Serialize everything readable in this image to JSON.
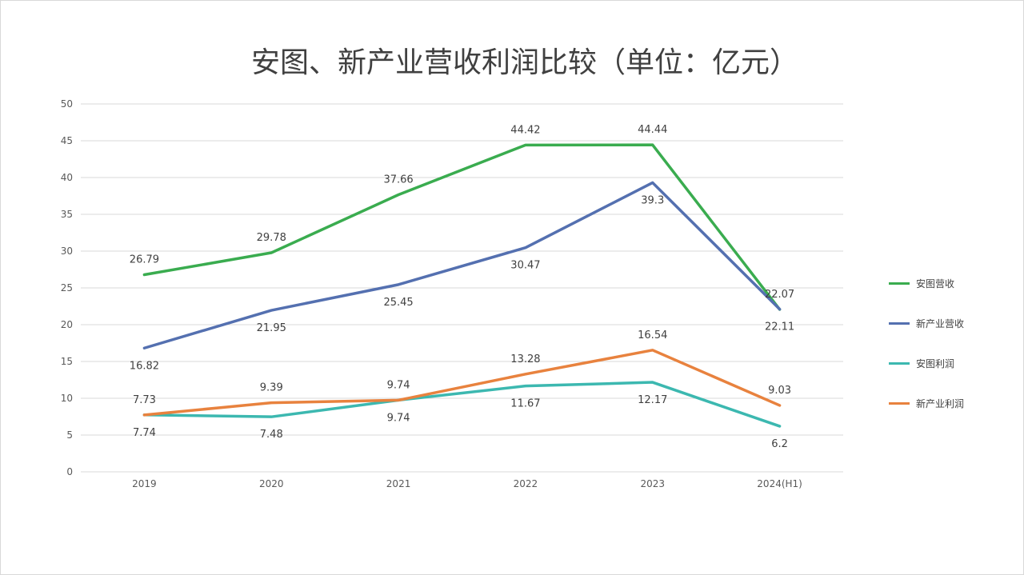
{
  "chart_data": {
    "type": "line",
    "title": "安图、新产业营收利润比较（单位：亿元）",
    "categories": [
      "2019",
      "2020",
      "2021",
      "2022",
      "2023",
      "2024(H1)"
    ],
    "ylim": [
      0,
      50
    ],
    "yticks": [
      0,
      5,
      10,
      15,
      20,
      25,
      30,
      35,
      40,
      45,
      50
    ],
    "grid": true,
    "legend_position": "right",
    "series": [
      {
        "name": "安图营收",
        "color": "#3aac4f",
        "values": [
          26.79,
          29.78,
          37.66,
          44.42,
          44.44,
          22.07
        ],
        "labels": [
          "26.79",
          "29.78",
          "37.66",
          "44.42",
          "44.44",
          "22.07"
        ],
        "label_pos": [
          "above",
          "above",
          "above",
          "above",
          "above",
          "above"
        ]
      },
      {
        "name": "新产业营收",
        "color": "#5470b0",
        "values": [
          16.82,
          21.95,
          25.45,
          30.47,
          39.3,
          22.11
        ],
        "labels": [
          "16.82",
          "21.95",
          "25.45",
          "30.47",
          "39.3",
          "22.11"
        ],
        "label_pos": [
          "below",
          "below",
          "below",
          "below",
          "below",
          "below"
        ]
      },
      {
        "name": "安图利润",
        "color": "#3cb8b0",
        "values": [
          7.74,
          7.48,
          9.74,
          11.67,
          12.17,
          6.2
        ],
        "labels": [
          "7.74",
          "7.48",
          "9.74",
          "11.67",
          "12.17",
          "6.2"
        ],
        "label_pos": [
          "below",
          "below",
          "below",
          "below",
          "below",
          "below"
        ]
      },
      {
        "name": "新产业利润",
        "color": "#e8823e",
        "values": [
          7.73,
          9.39,
          9.74,
          13.28,
          16.54,
          9.03
        ],
        "labels": [
          "7.73",
          "9.39",
          "9.74",
          "13.28",
          "16.54",
          "9.03"
        ],
        "label_pos": [
          "above",
          "above",
          "above",
          "above",
          "above",
          "above"
        ]
      }
    ]
  }
}
